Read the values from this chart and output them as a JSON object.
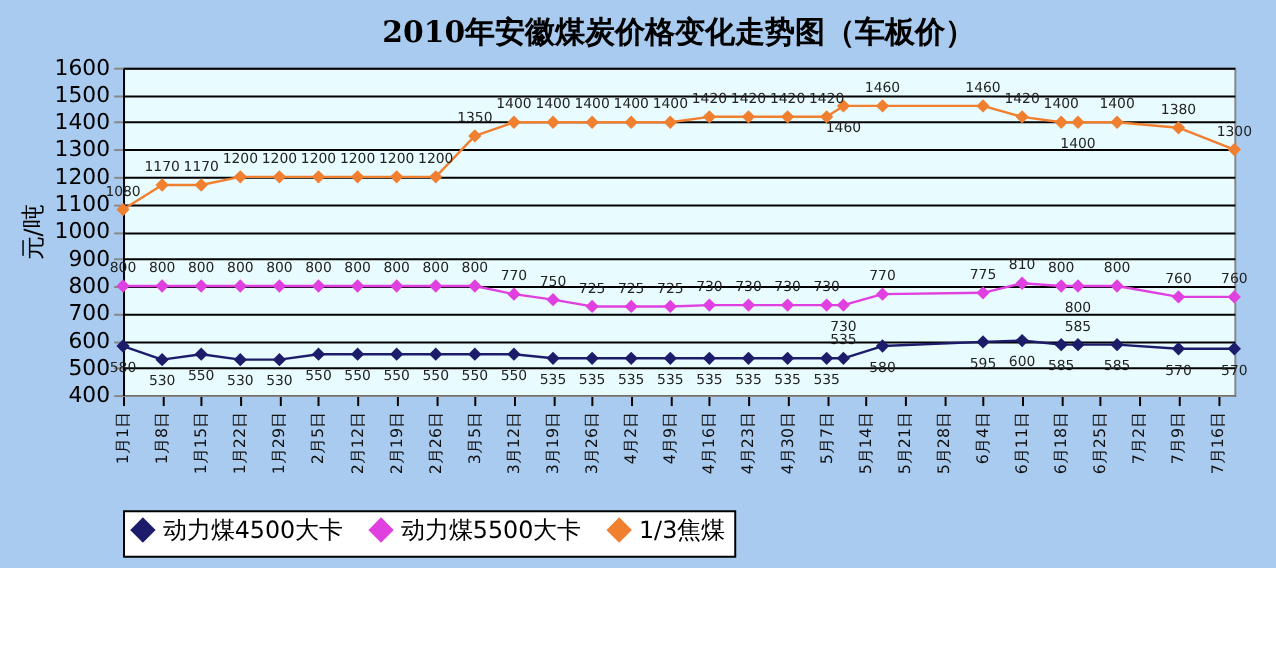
{
  "chart_data": {
    "type": "line",
    "title": "2010年安徽煤炭价格变化走势图（车板价）",
    "ylabel": "元/吨",
    "x": [
      "2010-01-01",
      "2010-01-08",
      "2010-01-15",
      "2010-01-22",
      "2010-01-29",
      "2010-02-05",
      "2010-02-12",
      "2010-02-19",
      "2010-02-26",
      "2010-03-05",
      "2010-03-12",
      "2010-03-19",
      "2010-03-26",
      "2010-04-02",
      "2010-04-09",
      "2010-04-16",
      "2010-04-23",
      "2010-04-30",
      "2010-05-07",
      "2010-05-10",
      "2010-05-17",
      "2010-06-04",
      "2010-06-11",
      "2010-06-18",
      "2010-06-21",
      "2010-06-28",
      "2010-07-09",
      "2010-07-19"
    ],
    "series": [
      {
        "name": "动力煤4500大卡",
        "color": "#1c1c6b",
        "values": [
          580,
          530,
          550,
          530,
          530,
          550,
          550,
          550,
          550,
          550,
          550,
          535,
          535,
          535,
          535,
          535,
          535,
          535,
          535,
          535,
          580,
          595,
          600,
          585,
          585,
          585,
          570,
          570
        ]
      },
      {
        "name": "动力煤5500大卡",
        "color": "#e040e0",
        "values": [
          800,
          800,
          800,
          800,
          800,
          800,
          800,
          800,
          800,
          800,
          770,
          750,
          725,
          725,
          725,
          730,
          730,
          730,
          730,
          730,
          770,
          775,
          810,
          800,
          800,
          800,
          760,
          760
        ]
      },
      {
        "name": "1/3焦煤",
        "color": "#f07f2f",
        "values": [
          1080,
          1170,
          1170,
          1200,
          1200,
          1200,
          1200,
          1200,
          1200,
          1350,
          1400,
          1400,
          1400,
          1400,
          1400,
          1420,
          1420,
          1420,
          1420,
          1460,
          1460,
          1460,
          1420,
          1400,
          1400,
          1400,
          1380,
          1300
        ]
      }
    ],
    "xlim": [
      "2010-01-01",
      "2010-07-19"
    ],
    "xticks": [
      {
        "value": "2010-01-01",
        "label": "1月1日"
      },
      {
        "value": "2010-01-08",
        "label": "1月8日"
      },
      {
        "value": "2010-01-15",
        "label": "1月15日"
      },
      {
        "value": "2010-01-22",
        "label": "1月22日"
      },
      {
        "value": "2010-01-29",
        "label": "1月29日"
      },
      {
        "value": "2010-02-05",
        "label": "2月5日"
      },
      {
        "value": "2010-02-12",
        "label": "2月12日"
      },
      {
        "value": "2010-02-19",
        "label": "2月19日"
      },
      {
        "value": "2010-02-26",
        "label": "2月26日"
      },
      {
        "value": "2010-03-05",
        "label": "3月5日"
      },
      {
        "value": "2010-03-12",
        "label": "3月12日"
      },
      {
        "value": "2010-03-19",
        "label": "3月19日"
      },
      {
        "value": "2010-03-26",
        "label": "3月26日"
      },
      {
        "value": "2010-04-02",
        "label": "4月2日"
      },
      {
        "value": "2010-04-09",
        "label": "4月9日"
      },
      {
        "value": "2010-04-16",
        "label": "4月16日"
      },
      {
        "value": "2010-04-23",
        "label": "4月23日"
      },
      {
        "value": "2010-04-30",
        "label": "4月30日"
      },
      {
        "value": "2010-05-07",
        "label": "5月7日"
      },
      {
        "value": "2010-05-14",
        "label": "5月14日"
      },
      {
        "value": "2010-05-21",
        "label": "5月21日"
      },
      {
        "value": "2010-05-28",
        "label": "5月28日"
      },
      {
        "value": "2010-06-04",
        "label": "6月4日"
      },
      {
        "value": "2010-06-11",
        "label": "6月11日"
      },
      {
        "value": "2010-06-18",
        "label": "6月18日"
      },
      {
        "value": "2010-06-25",
        "label": "6月25日"
      },
      {
        "value": "2010-07-02",
        "label": "7月2日"
      },
      {
        "value": "2010-07-09",
        "label": "7月9日"
      },
      {
        "value": "2010-07-16",
        "label": "7月16日"
      }
    ],
    "ylim": [
      400,
      1600
    ],
    "yticks": [
      400,
      500,
      600,
      700,
      800,
      900,
      1000,
      1100,
      1200,
      1300,
      1400,
      1500,
      1600
    ],
    "grid": "y",
    "legend": "bottom",
    "marker": "diamond",
    "line_style": "solid",
    "data_labels": true
  }
}
